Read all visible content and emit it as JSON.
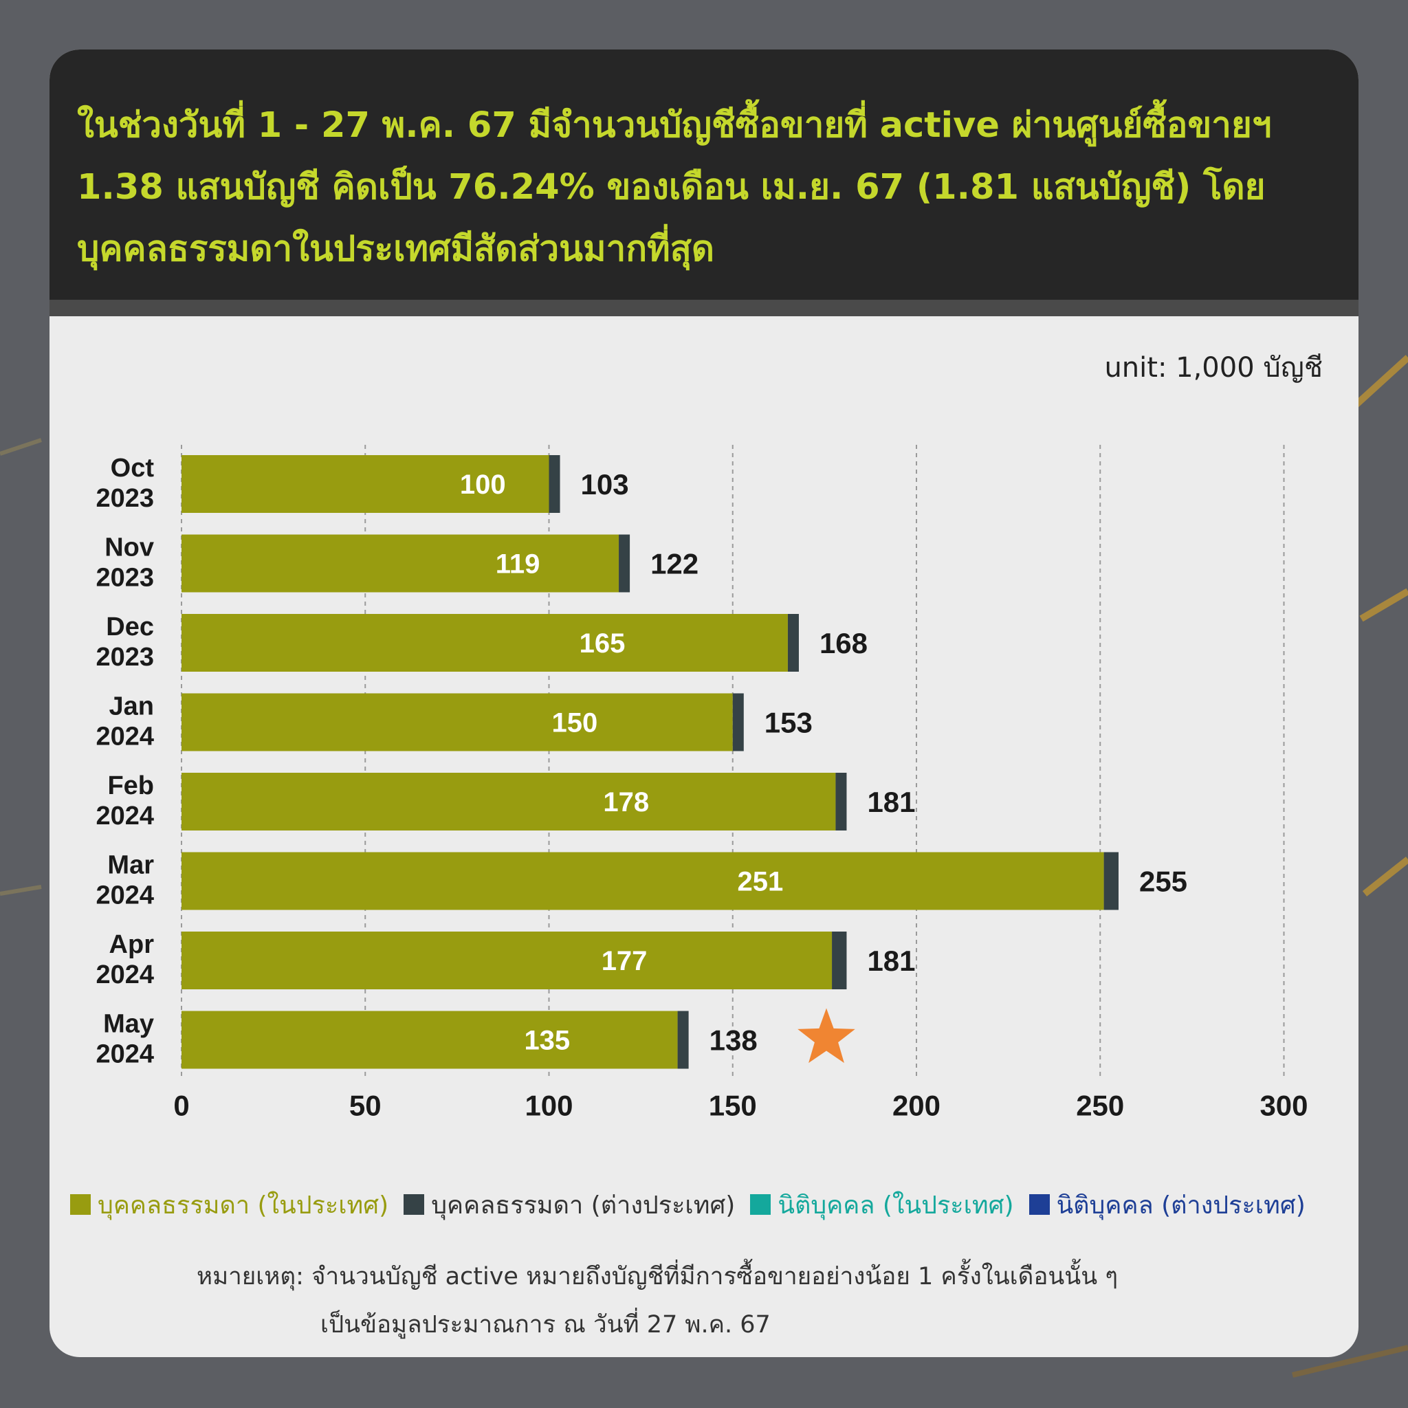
{
  "headline": "ในช่วงวันที่ 1 - 27 พ.ค. 67 มีจำนวนบัญชีซื้อขายที่ active ผ่านศูนย์ซื้อขายฯ 1.38 แสนบัญชี คิดเป็น 76.24% ของเดือน เม.ย. 67 (1.81 แสนบัญชี) โดยบุคคลธรรมดาในประเทศมีสัดส่วนมากที่สุด",
  "unit_label": "unit: 1,000 บัญชี",
  "colors": {
    "individual_domestic": "#989c10",
    "individual_foreign": "#354246",
    "juristic_domestic": "#14a89c",
    "juristic_foreign": "#1e3f96",
    "star": "#f08532",
    "headline_text": "#c5d82c"
  },
  "chart_data": {
    "type": "bar",
    "orientation": "horizontal",
    "stacked": true,
    "categories": [
      [
        "Oct",
        "2023"
      ],
      [
        "Nov",
        "2023"
      ],
      [
        "Dec",
        "2023"
      ],
      [
        "Jan",
        "2024"
      ],
      [
        "Feb",
        "2024"
      ],
      [
        "Mar",
        "2024"
      ],
      [
        "Apr",
        "2024"
      ],
      [
        "May",
        "2024"
      ]
    ],
    "series": [
      {
        "name": "บุคคลธรรมดา (ในประเทศ)",
        "values": [
          100,
          119,
          165,
          150,
          178,
          251,
          177,
          135
        ]
      },
      {
        "name": "บุคคลธรรมดา (ต่างประเทศ)",
        "values": [
          3,
          3,
          3,
          3,
          3,
          4,
          4,
          3
        ]
      },
      {
        "name": "นิติบุคคล (ในประเทศ)",
        "values": [
          0,
          0,
          0,
          0,
          0,
          0,
          0,
          0
        ]
      },
      {
        "name": "นิติบุคคล (ต่างประเทศ)",
        "values": [
          0,
          0,
          0,
          0,
          0,
          0,
          0,
          0
        ]
      }
    ],
    "totals": [
      103,
      122,
      168,
      153,
      181,
      255,
      181,
      138
    ],
    "xlim": [
      0,
      300
    ],
    "xticks": [
      0,
      50,
      100,
      150,
      200,
      250,
      300
    ],
    "grid": "vertical dashed",
    "legend_position": "bottom",
    "annotation": "star-icon next to May 2024"
  },
  "legend": [
    {
      "label": "บุคคลธรรมดา (ในประเทศ)",
      "color": "#989c10"
    },
    {
      "label": "บุคคลธรรมดา (ต่างประเทศ)",
      "color": "#354246"
    },
    {
      "label": "นิติบุคคล (ในประเทศ)",
      "color": "#14a89c"
    },
    {
      "label": "นิติบุคคล (ต่างประเทศ)",
      "color": "#1e3f96"
    }
  ],
  "note": {
    "line1": "หมายเหตุ: จำนวนบัญชี active หมายถึงบัญชีที่มีการซื้อขายอย่างน้อย 1 ครั้งในเดือนนั้น ๆ",
    "line2": "เป็นข้อมูลประมาณการ ณ วันที่ 27 พ.ค. 67"
  }
}
